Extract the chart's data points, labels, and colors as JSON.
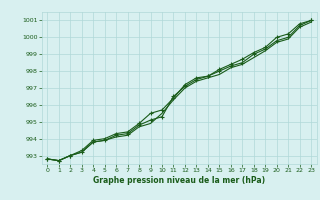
{
  "title": "Graphe pression niveau de la mer (hPa)",
  "x_values": [
    0,
    1,
    2,
    3,
    4,
    5,
    6,
    7,
    8,
    9,
    10,
    11,
    12,
    13,
    14,
    15,
    16,
    17,
    18,
    19,
    20,
    21,
    22,
    23
  ],
  "line1": [
    992.8,
    992.7,
    993.0,
    993.2,
    993.8,
    993.9,
    994.2,
    994.3,
    994.8,
    995.1,
    995.3,
    996.5,
    997.1,
    997.5,
    997.7,
    998.0,
    998.3,
    998.5,
    999.0,
    999.3,
    999.8,
    1000.0,
    1000.7,
    1001.0
  ],
  "line2": [
    992.8,
    992.7,
    993.0,
    993.3,
    993.9,
    994.0,
    994.3,
    994.4,
    994.9,
    995.5,
    995.7,
    996.4,
    997.2,
    997.6,
    997.7,
    998.1,
    998.4,
    998.7,
    999.1,
    999.4,
    1000.0,
    1000.2,
    1000.8,
    1001.0
  ],
  "line3": [
    992.8,
    992.7,
    993.0,
    993.2,
    993.8,
    993.9,
    994.1,
    994.2,
    994.7,
    994.9,
    995.5,
    996.3,
    997.0,
    997.4,
    997.6,
    997.8,
    998.2,
    998.4,
    998.8,
    999.2,
    999.7,
    999.9,
    1000.6,
    1000.9
  ],
  "ylim": [
    992.5,
    1001.5
  ],
  "xlim": [
    -0.5,
    23.5
  ],
  "yticks": [
    993,
    994,
    995,
    996,
    997,
    998,
    999,
    1000,
    1001
  ],
  "xticks": [
    0,
    1,
    2,
    3,
    4,
    5,
    6,
    7,
    8,
    9,
    10,
    11,
    12,
    13,
    14,
    15,
    16,
    17,
    18,
    19,
    20,
    21,
    22,
    23
  ],
  "line_color": "#1a5c1a",
  "marker_color": "#1a5c1a",
  "bg_color": "#d8f0f0",
  "grid_color": "#b0d8d8",
  "title_color": "#1a5c1a",
  "marker": "+",
  "marker_size": 3,
  "linewidth": 0.8
}
